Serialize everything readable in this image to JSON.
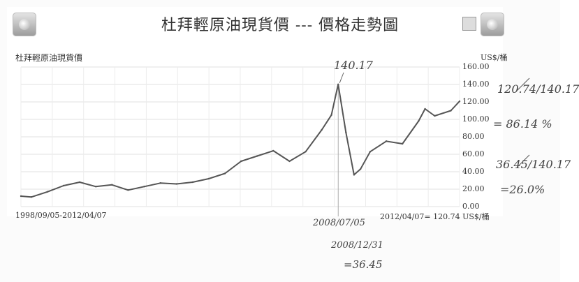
{
  "page": {
    "title": "杜拜輕原油現貨價 --- 價格走勢圖",
    "subtitle": "杜拜輕原油現貨價",
    "unit": "US$/桶",
    "date_range": "1998/09/05-2012/04/07",
    "latest_label": "2012/04/07= 120.74 US$/桶"
  },
  "handwriting": {
    "peak": "140.17",
    "peak_date": "2008/07/05",
    "trough_date": "2008/12/31",
    "trough_value": "=36.45",
    "calc1": "120.74/140.17",
    "result1": "= 86.14 %",
    "calc2": "36.45/140.17",
    "result2": "=26.0%"
  },
  "chart_data": {
    "type": "line",
    "title": "杜拜輕原油現貨價 --- 價格走勢圖",
    "ylabel": "US$/桶",
    "ylim": [
      0,
      160
    ],
    "yticks": [
      "160.00",
      "140.00",
      "120.00",
      "100.00",
      "80.00",
      "60.00",
      "40.00",
      "20.00",
      "0.00"
    ],
    "grid": true,
    "series": [
      {
        "name": "杜拜輕原油現貨價",
        "color": "#555555",
        "x": [
          1998.68,
          1999.0,
          1999.5,
          2000.0,
          2000.5,
          2001.0,
          2001.5,
          2002.0,
          2002.5,
          2003.0,
          2003.5,
          2004.0,
          2004.5,
          2005.0,
          2005.5,
          2006.0,
          2006.5,
          2007.0,
          2007.5,
          2008.0,
          2008.3,
          2008.51,
          2008.75,
          2009.0,
          2009.2,
          2009.5,
          2010.0,
          2010.5,
          2011.0,
          2011.2,
          2011.5,
          2012.0,
          2012.27
        ],
        "values": [
          12,
          11,
          17,
          24,
          28,
          23,
          25,
          19,
          23,
          27,
          26,
          28,
          32,
          38,
          52,
          58,
          64,
          52,
          63,
          88,
          105,
          140.17,
          85,
          36.45,
          43,
          63,
          75,
          72,
          98,
          112,
          104,
          110,
          120.74
        ]
      }
    ]
  }
}
